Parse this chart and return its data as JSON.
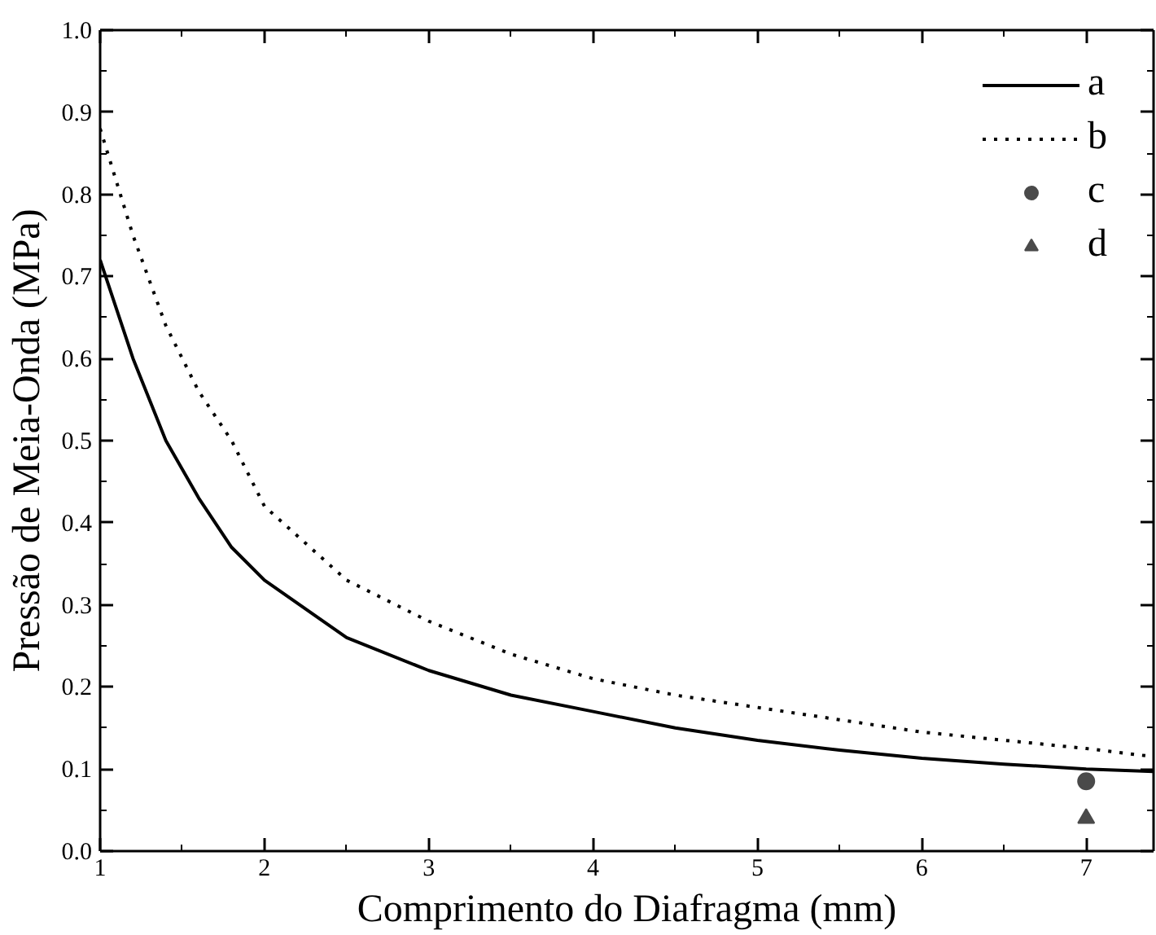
{
  "chart_data": {
    "type": "line",
    "xlabel": "Comprimento do Diafragma (mm)",
    "ylabel": "Pressão de Meia-Onda (MPa)",
    "xlim": [
      1,
      7.41
    ],
    "ylim": [
      0,
      1
    ],
    "xticks": [
      1,
      2,
      3,
      4,
      5,
      6,
      7
    ],
    "yticks": [
      {
        "value": 0,
        "label": "0.0"
      },
      0.1,
      0.2,
      0.3,
      0.4,
      0.5,
      0.6,
      0.7,
      0.8,
      0.9,
      {
        "value": 1,
        "label": "1.0"
      }
    ],
    "grid": false,
    "legend": "top right",
    "series": [
      {
        "name": "a",
        "line_style": "solid",
        "color": "#000000",
        "x": [
          1,
          1.2,
          1.4,
          1.6,
          1.8,
          2,
          2.5,
          3,
          3.5,
          4,
          4.5,
          5,
          5.5,
          6,
          6.5,
          7,
          7.41
        ],
        "values": [
          0.72,
          0.6,
          0.5,
          0.43,
          0.37,
          0.33,
          0.26,
          0.22,
          0.19,
          0.17,
          0.15,
          0.135,
          0.123,
          0.113,
          0.106,
          0.1,
          0.097
        ]
      },
      {
        "name": "b",
        "line_style": "dotted",
        "color": "#000000",
        "x": [
          1,
          1.2,
          1.4,
          1.6,
          1.8,
          2,
          2.5,
          3,
          3.5,
          4,
          4.5,
          5,
          5.5,
          6,
          6.5,
          7,
          7.41
        ],
        "values": [
          0.88,
          0.75,
          0.64,
          0.56,
          0.5,
          0.42,
          0.33,
          0.28,
          0.24,
          0.21,
          0.19,
          0.175,
          0.16,
          0.145,
          0.135,
          0.125,
          0.115
        ]
      },
      {
        "name": "c",
        "type": "scatter",
        "marker": "circle",
        "color": "#4a4a4a",
        "x": [
          7
        ],
        "values": [
          0.085
        ]
      },
      {
        "name": "d",
        "type": "scatter",
        "marker": "triangle",
        "color": "#4a4a4a",
        "x": [
          7
        ],
        "values": [
          0.04
        ]
      }
    ]
  }
}
